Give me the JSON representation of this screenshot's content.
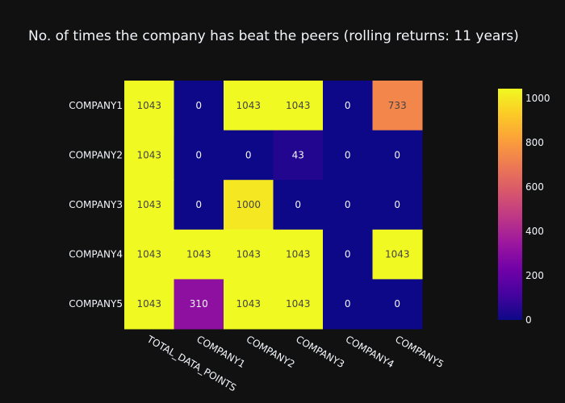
{
  "chart_data": {
    "type": "heatmap",
    "title": "No. of times the company has beat the peers (rolling returns: 11 years)",
    "x_categories": [
      "TOTAL_DATA_POINTS",
      "COMPANY1",
      "COMPANY2",
      "COMPANY3",
      "COMPANY4",
      "COMPANY5"
    ],
    "y_categories": [
      "COMPANY1",
      "COMPANY2",
      "COMPANY3",
      "COMPANY4",
      "COMPANY5"
    ],
    "values": [
      [
        1043,
        0,
        1043,
        1043,
        0,
        733
      ],
      [
        1043,
        0,
        0,
        43,
        0,
        0
      ],
      [
        1043,
        0,
        1000,
        0,
        0,
        0
      ],
      [
        1043,
        1043,
        1043,
        1043,
        0,
        1043
      ],
      [
        1043,
        310,
        1043,
        1043,
        0,
        0
      ]
    ],
    "zmin": 0,
    "zmax": 1043,
    "colorscale": "plasma",
    "colorbar_ticks": [
      0,
      200,
      400,
      600,
      800,
      1000
    ],
    "colors": {
      "background": "#111111",
      "text": "#f2f5fa",
      "cell_text_dark": "#444444",
      "cell_text_light": "#f2f5fa"
    }
  }
}
